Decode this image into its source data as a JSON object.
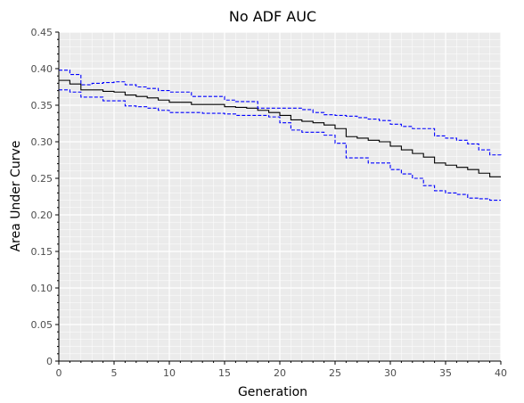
{
  "chart_data": {
    "type": "line",
    "title": "No ADF AUC",
    "xlabel": "Generation",
    "ylabel": "Area Under Curve",
    "xlim": [
      0,
      40
    ],
    "ylim": [
      0,
      0.45
    ],
    "x_ticks": [
      0,
      5,
      10,
      15,
      20,
      25,
      30,
      35,
      40
    ],
    "y_ticks": [
      0,
      0.05,
      0.1,
      0.15,
      0.2,
      0.25,
      0.3,
      0.35,
      0.4,
      0.45
    ],
    "x_tick_labels": [
      "0",
      "5",
      "10",
      "15",
      "20",
      "25",
      "30",
      "35",
      "40"
    ],
    "y_tick_labels": [
      "0",
      "0.05",
      "0.10",
      "0.15",
      "0.20",
      "0.25",
      "0.30",
      "0.35",
      "0.40",
      "0.45"
    ],
    "grid": true,
    "step": true,
    "series": [
      {
        "color": "#000000",
        "dash": "solid",
        "x": [
          0,
          1,
          2,
          3,
          4,
          5,
          6,
          7,
          8,
          9,
          10,
          11,
          12,
          13,
          14,
          15,
          16,
          17,
          18,
          19,
          20,
          21,
          22,
          23,
          24,
          25,
          26,
          27,
          28,
          29,
          30,
          31,
          32,
          33,
          34,
          35,
          36,
          37,
          38,
          39,
          40
        ],
        "values": [
          0.384,
          0.379,
          0.371,
          0.371,
          0.369,
          0.368,
          0.364,
          0.362,
          0.36,
          0.357,
          0.354,
          0.354,
          0.351,
          0.351,
          0.351,
          0.348,
          0.347,
          0.346,
          0.343,
          0.34,
          0.336,
          0.33,
          0.328,
          0.326,
          0.323,
          0.318,
          0.307,
          0.305,
          0.302,
          0.3,
          0.294,
          0.289,
          0.284,
          0.279,
          0.271,
          0.268,
          0.265,
          0.262,
          0.257,
          0.252,
          0.252
        ]
      },
      {
        "color": "#0000ff",
        "dash": "dashed",
        "x": [
          0,
          1,
          2,
          3,
          4,
          5,
          6,
          7,
          8,
          9,
          10,
          11,
          12,
          13,
          14,
          15,
          16,
          17,
          18,
          19,
          20,
          21,
          22,
          23,
          24,
          25,
          26,
          27,
          28,
          29,
          30,
          31,
          32,
          33,
          34,
          35,
          36,
          37,
          38,
          39,
          40
        ],
        "values": [
          0.398,
          0.392,
          0.378,
          0.38,
          0.381,
          0.382,
          0.378,
          0.375,
          0.373,
          0.37,
          0.368,
          0.368,
          0.362,
          0.362,
          0.362,
          0.357,
          0.355,
          0.355,
          0.346,
          0.346,
          0.346,
          0.346,
          0.344,
          0.34,
          0.337,
          0.336,
          0.335,
          0.333,
          0.331,
          0.329,
          0.324,
          0.321,
          0.318,
          0.318,
          0.308,
          0.305,
          0.302,
          0.297,
          0.289,
          0.282,
          0.28
        ]
      },
      {
        "color": "#0000ff",
        "dash": "dashed",
        "x": [
          0,
          1,
          2,
          3,
          4,
          5,
          6,
          7,
          8,
          9,
          10,
          11,
          12,
          13,
          14,
          15,
          16,
          17,
          18,
          19,
          20,
          21,
          22,
          23,
          24,
          25,
          26,
          27,
          28,
          29,
          30,
          31,
          32,
          33,
          34,
          35,
          36,
          37,
          38,
          39,
          40
        ],
        "values": [
          0.371,
          0.368,
          0.361,
          0.361,
          0.356,
          0.356,
          0.349,
          0.348,
          0.346,
          0.343,
          0.34,
          0.34,
          0.34,
          0.339,
          0.339,
          0.338,
          0.336,
          0.336,
          0.336,
          0.334,
          0.326,
          0.316,
          0.313,
          0.313,
          0.309,
          0.298,
          0.278,
          0.278,
          0.271,
          0.271,
          0.262,
          0.256,
          0.25,
          0.24,
          0.233,
          0.23,
          0.228,
          0.223,
          0.222,
          0.22,
          0.22
        ]
      }
    ]
  }
}
